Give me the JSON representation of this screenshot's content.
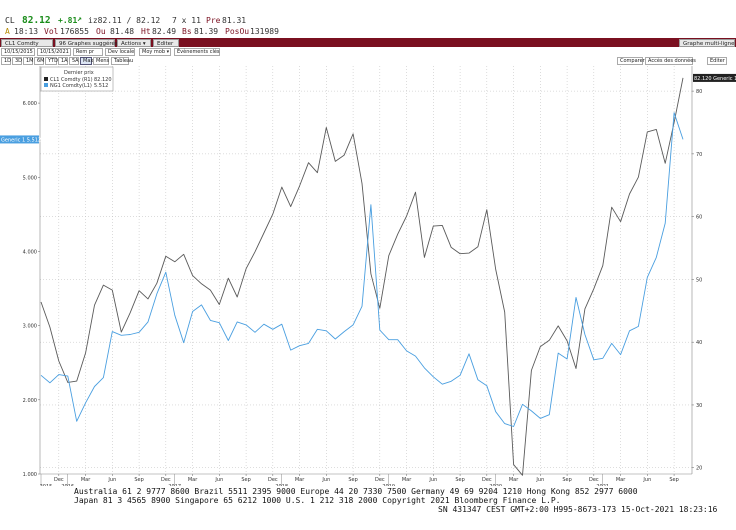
{
  "quote": {
    "ticker": "CL",
    "last": "82.12",
    "change": "+.81",
    "arrow_icon": "up-arrow-icon",
    "bid_ask": "iz82.11 / 82.12",
    "size": "7 x 11",
    "prev_label": "Pre",
    "prev": "81.31",
    "time_prefix": "A",
    "time": "18:13",
    "vol_label": "Vol",
    "vol": "176855",
    "open_label": "Ou",
    "open": "81.48",
    "high_label": "Ht",
    "high": "82.49",
    "low_label": "Bs",
    "low": "81.39",
    "oi_label": "PosOu",
    "oi": "131989"
  },
  "menubar": {
    "items": [
      "CL1 Comdty",
      "96 Graphes suggérés",
      "Actions ▾",
      "Editer"
    ],
    "right_label": "Graphe multi-ligne"
  },
  "controls": {
    "start_date": "10/15/2015",
    "end_date": "10/15/2021",
    "periods": [
      "1D",
      "3D",
      "1M",
      "6M",
      "YTD",
      "1A",
      "5A",
      "Max"
    ],
    "frequency": "Mens ▾",
    "table_label": "Tableau",
    "compare_label": "Comparer",
    "events_label": "Évènements clés",
    "mov_avg_label": "Moy mob ▾",
    "local_ccy_label": "Dev locale",
    "quota_label": "Rem pr",
    "right_buttons": [
      "Comparer ▾",
      "Accès des données",
      "Editer"
    ]
  },
  "legend": {
    "title": "Dernier prix",
    "entries": [
      {
        "label": "CL1 Comdty",
        "axis": "(R1)",
        "value": "82.120",
        "color": "#5a5a5a"
      },
      {
        "label": "NG1 Comdty",
        "axis": "(L1)",
        "value": "5.512",
        "color": "#4a9fe0"
      }
    ]
  },
  "tags": {
    "left": "Generic 1 5.512",
    "right": "82.120 Generic 1"
  },
  "footer": {
    "line1": "Australia 61 2 9777 8600 Brazil 5511 2395 9000 Europe 44 20 7330 7500 Germany 49 69 9204 1210 Hong Kong 852 2977 6000",
    "line2": "Japan 81 3 4565 8900        Singapore 65 6212 1000        U.S. 1 212 318 2000        Copyright 2021 Bloomberg Finance L.P.",
    "line3": "SN 431347 CEST GMT+2:00 H995-8673-173 15-Oct-2021 18:23:16"
  },
  "chart_data": {
    "type": "line",
    "title": "",
    "x": [
      "2015-10",
      "2015-11",
      "2015-12",
      "2016-01",
      "2016-02",
      "2016-03",
      "2016-04",
      "2016-05",
      "2016-06",
      "2016-07",
      "2016-08",
      "2016-09",
      "2016-10",
      "2016-11",
      "2016-12",
      "2017-01",
      "2017-02",
      "2017-03",
      "2017-04",
      "2017-05",
      "2017-06",
      "2017-07",
      "2017-08",
      "2017-09",
      "2017-10",
      "2017-11",
      "2017-12",
      "2018-01",
      "2018-02",
      "2018-03",
      "2018-04",
      "2018-05",
      "2018-06",
      "2018-07",
      "2018-08",
      "2018-09",
      "2018-10",
      "2018-11",
      "2018-12",
      "2019-01",
      "2019-02",
      "2019-03",
      "2019-04",
      "2019-05",
      "2019-06",
      "2019-07",
      "2019-08",
      "2019-09",
      "2019-10",
      "2019-11",
      "2019-12",
      "2020-01",
      "2020-02",
      "2020-03",
      "2020-04",
      "2020-05",
      "2020-06",
      "2020-07",
      "2020-08",
      "2020-09",
      "2020-10",
      "2020-11",
      "2020-12",
      "2021-01",
      "2021-02",
      "2021-03",
      "2021-04",
      "2021-05",
      "2021-06",
      "2021-07",
      "2021-08",
      "2021-09",
      "2021-10"
    ],
    "x_tick_labels": [
      "Dec",
      "Mar",
      "Jun",
      "Sep",
      "Dec",
      "Mar",
      "Jun",
      "Sep",
      "Dec",
      "Mar",
      "Jun",
      "Sep",
      "Dec",
      "Mar",
      "Jun",
      "Sep",
      "Dec",
      "Mar",
      "Jun",
      "Sep",
      "Dec",
      "Mar",
      "Jun",
      "Sep"
    ],
    "year_labels": [
      "2015",
      "2016",
      "2017",
      "2018",
      "2019",
      "2020",
      "2021"
    ],
    "left_axis": {
      "ticks": [
        "1.000",
        "2.000",
        "3.000",
        "4.000",
        "5.000",
        "6.000"
      ],
      "ylim": [
        1.0,
        6.5
      ]
    },
    "right_axis": {
      "ticks": [
        "20",
        "30",
        "40",
        "50",
        "60",
        "70",
        "80"
      ],
      "ylim": [
        19,
        84
      ]
    },
    "series": [
      {
        "name": "CL1 Comdty",
        "axis": "right",
        "color": "#5a5a5a",
        "values": [
          46.4,
          42.4,
          37.0,
          33.6,
          33.8,
          38.3,
          45.9,
          49.1,
          48.3,
          41.6,
          44.7,
          48.2,
          46.9,
          49.4,
          53.7,
          52.8,
          54.0,
          50.6,
          49.3,
          48.3,
          46.0,
          50.2,
          47.2,
          51.7,
          54.4,
          57.4,
          60.4,
          64.7,
          61.6,
          64.9,
          68.6,
          67.0,
          74.2,
          68.8,
          69.8,
          73.2,
          65.3,
          50.9,
          45.4,
          53.8,
          57.2,
          60.1,
          63.9,
          53.5,
          58.5,
          58.6,
          55.1,
          54.1,
          54.2,
          55.2,
          61.1,
          51.6,
          44.8,
          20.5,
          18.8,
          35.5,
          39.3,
          40.3,
          42.6,
          40.2,
          35.8,
          45.3,
          48.5,
          52.2,
          61.5,
          59.2,
          63.6,
          66.3,
          73.5,
          73.9,
          68.5,
          75.0,
          82.1
        ]
      },
      {
        "name": "NG1 Comdty",
        "axis": "left",
        "color": "#4a9fe0",
        "values": [
          2.33,
          2.23,
          2.34,
          2.32,
          1.71,
          1.96,
          2.18,
          2.3,
          2.92,
          2.87,
          2.88,
          2.91,
          3.05,
          3.43,
          3.72,
          3.14,
          2.77,
          3.19,
          3.28,
          3.07,
          3.04,
          2.8,
          3.05,
          3.01,
          2.91,
          3.02,
          2.95,
          3.02,
          2.67,
          2.73,
          2.76,
          2.95,
          2.93,
          2.82,
          2.92,
          3.01,
          3.26,
          4.63,
          2.94,
          2.81,
          2.81,
          2.66,
          2.59,
          2.43,
          2.31,
          2.21,
          2.25,
          2.33,
          2.62,
          2.27,
          2.19,
          1.84,
          1.68,
          1.64,
          1.94,
          1.85,
          1.75,
          1.8,
          2.63,
          2.55,
          3.38,
          2.88,
          2.54,
          2.56,
          2.76,
          2.61,
          2.93,
          2.99,
          3.65,
          3.92,
          4.38,
          5.87,
          5.51
        ]
      }
    ]
  }
}
